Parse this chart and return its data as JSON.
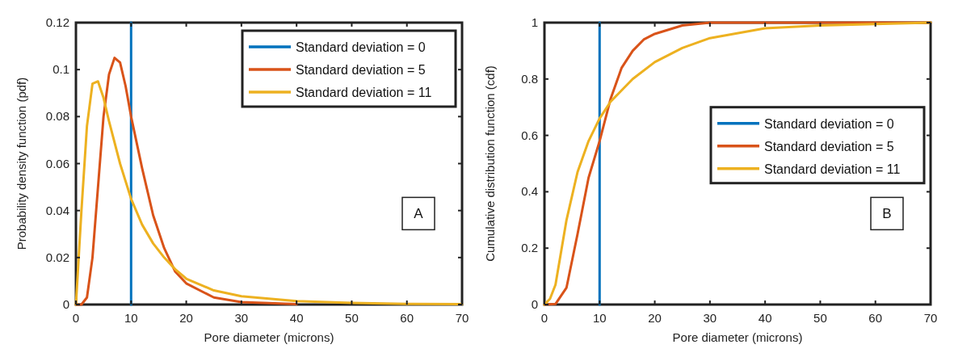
{
  "chart_data": [
    {
      "type": "line",
      "xlabel": "Pore diameter (microns)",
      "ylabel": "Probability density function (pdf)",
      "xlim": [
        0,
        70
      ],
      "xticks": [
        0,
        10,
        20,
        30,
        40,
        50,
        60,
        70
      ],
      "ylim": [
        0,
        0.12
      ],
      "yticks": [
        0,
        0.02,
        0.04,
        0.06,
        0.08,
        0.1,
        0.12
      ],
      "grid": false,
      "legend": "top right",
      "annotations": [
        "A"
      ],
      "series": [
        {
          "name": "Standard deviation = 0",
          "color": "#0072bd",
          "x": [
            10,
            10
          ],
          "values": [
            0,
            0.12
          ]
        },
        {
          "name": "Standard deviation = 5",
          "color": "#d95319",
          "x": [
            0,
            1,
            2,
            3,
            4,
            5,
            6,
            7,
            8,
            9,
            10,
            12,
            14,
            16,
            18,
            20,
            25,
            30,
            40
          ],
          "values": [
            0,
            0,
            0.003,
            0.02,
            0.05,
            0.08,
            0.098,
            0.105,
            0.103,
            0.093,
            0.08,
            0.058,
            0.038,
            0.024,
            0.014,
            0.009,
            0.003,
            0.001,
            0.0002
          ]
        },
        {
          "name": "Standard deviation = 11",
          "color": "#edb120",
          "x": [
            0,
            1,
            2,
            3,
            4,
            5,
            6,
            8,
            10,
            12,
            14,
            16,
            18,
            20,
            25,
            30,
            40,
            50,
            60,
            70
          ],
          "values": [
            0,
            0.04,
            0.076,
            0.094,
            0.095,
            0.088,
            0.078,
            0.06,
            0.045,
            0.034,
            0.026,
            0.02,
            0.015,
            0.011,
            0.006,
            0.0035,
            0.0015,
            0.0007,
            0.0003,
            0.0002
          ]
        }
      ]
    },
    {
      "type": "line",
      "xlabel": "Pore diameter (microns)",
      "ylabel": "Cumulative distribution function (cdf)",
      "xlim": [
        0,
        70
      ],
      "xticks": [
        0,
        10,
        20,
        30,
        40,
        50,
        60,
        70
      ],
      "ylim": [
        0,
        1
      ],
      "yticks": [
        0,
        0.2,
        0.4,
        0.6,
        0.8,
        1
      ],
      "grid": false,
      "legend": "right",
      "annotations": [
        "B"
      ],
      "series": [
        {
          "name": "Standard deviation = 0",
          "color": "#0072bd",
          "x": [
            10,
            10
          ],
          "values": [
            0,
            1
          ]
        },
        {
          "name": "Standard deviation = 5",
          "color": "#d95319",
          "x": [
            0,
            2,
            4,
            6,
            8,
            10,
            12,
            14,
            16,
            18,
            20,
            25,
            30,
            70
          ],
          "values": [
            0,
            0.002,
            0.06,
            0.25,
            0.45,
            0.58,
            0.73,
            0.84,
            0.9,
            0.94,
            0.96,
            0.99,
            1,
            1
          ]
        },
        {
          "name": "Standard deviation = 11",
          "color": "#edb120",
          "x": [
            0,
            1,
            2,
            4,
            6,
            8,
            10,
            12,
            14,
            16,
            20,
            25,
            30,
            40,
            50,
            60,
            70
          ],
          "values": [
            0,
            0.02,
            0.07,
            0.3,
            0.47,
            0.58,
            0.66,
            0.72,
            0.76,
            0.8,
            0.86,
            0.91,
            0.945,
            0.98,
            0.99,
            0.995,
            1
          ]
        }
      ]
    }
  ]
}
